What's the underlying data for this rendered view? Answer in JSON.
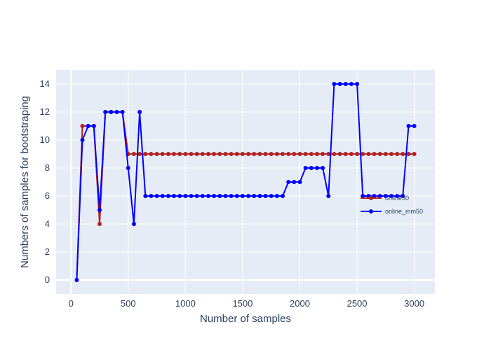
{
  "chart_data": {
    "type": "line",
    "xlabel": "Number of samples",
    "ylabel": "Numbers of samples for bootstraping",
    "xlim": [
      -130,
      3180
    ],
    "ylim": [
      -1,
      15
    ],
    "xticks": [
      0,
      500,
      1000,
      1500,
      2000,
      2500,
      3000
    ],
    "yticks": [
      0,
      2,
      4,
      6,
      8,
      10,
      12,
      14
    ],
    "xtick_labels": [
      "0",
      "500",
      "1000",
      "1500",
      "2000",
      "2500",
      "3000"
    ],
    "ytick_labels": [
      "0",
      "2",
      "4",
      "6",
      "8",
      "10",
      "12",
      "14"
    ],
    "grid": true,
    "legend_position": "right",
    "background": "#e5ecf6",
    "x": [
      50,
      100,
      150,
      200,
      250,
      300,
      350,
      400,
      450,
      500,
      550,
      600,
      650,
      700,
      750,
      800,
      850,
      900,
      950,
      1000,
      1050,
      1100,
      1150,
      1200,
      1250,
      1300,
      1350,
      1400,
      1450,
      1500,
      1550,
      1600,
      1650,
      1700,
      1750,
      1800,
      1850,
      1900,
      1950,
      2000,
      2050,
      2100,
      2150,
      2200,
      2250,
      2300,
      2350,
      2400,
      2450,
      2500,
      2550,
      2600,
      2650,
      2700,
      2750,
      2800,
      2850,
      2900,
      2950,
      3000
    ],
    "series": [
      {
        "name": "online50",
        "color": "#b22222",
        "values": [
          0,
          11,
          11,
          11,
          4,
          12,
          12,
          12,
          12,
          9,
          9,
          9,
          9,
          9,
          9,
          9,
          9,
          9,
          9,
          9,
          9,
          9,
          9,
          9,
          9,
          9,
          9,
          9,
          9,
          9,
          9,
          9,
          9,
          9,
          9,
          9,
          9,
          9,
          9,
          9,
          9,
          9,
          9,
          9,
          9,
          9,
          9,
          9,
          9,
          9,
          9,
          9,
          9,
          9,
          9,
          9,
          9,
          9,
          9,
          9
        ]
      },
      {
        "name": "online_mm50",
        "color": "#0000ff",
        "values": [
          0,
          10,
          11,
          11,
          5,
          12,
          12,
          12,
          12,
          8,
          4,
          12,
          6,
          6,
          6,
          6,
          6,
          6,
          6,
          6,
          6,
          6,
          6,
          6,
          6,
          6,
          6,
          6,
          6,
          6,
          6,
          6,
          6,
          6,
          6,
          6,
          6,
          7,
          7,
          7,
          8,
          8,
          8,
          8,
          6,
          14,
          14,
          14,
          14,
          14,
          6,
          6,
          6,
          6,
          6,
          6,
          6,
          6,
          11,
          11
        ]
      }
    ]
  }
}
